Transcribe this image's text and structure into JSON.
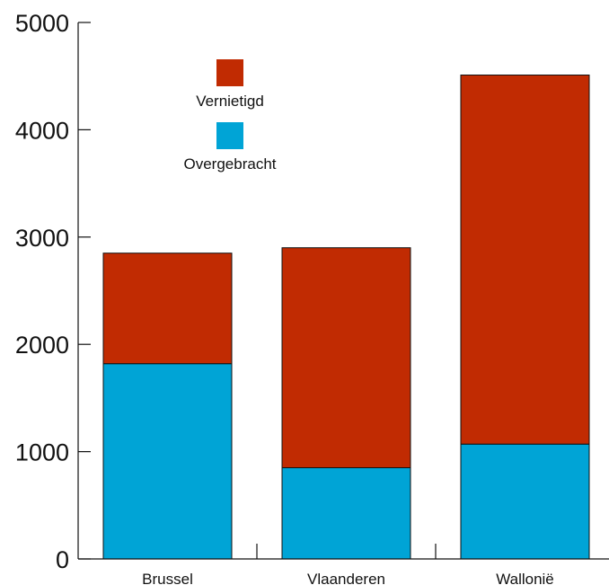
{
  "chart_data": {
    "type": "bar",
    "stacked": true,
    "categories": [
      "Brussel",
      "Vlaanderen",
      "Wallonië"
    ],
    "series": [
      {
        "name": "Overgebracht",
        "color": "#00a4d6",
        "values": [
          1820,
          850,
          1070
        ]
      },
      {
        "name": "Vernietigd",
        "color": "#c12b02",
        "values": [
          1030,
          2050,
          3440
        ]
      }
    ],
    "ylim": [
      0,
      5000
    ],
    "yticks": [
      0,
      1000,
      2000,
      3000,
      4000,
      5000
    ],
    "legend_position": "top-left",
    "grid": false,
    "title": "",
    "xlabel": "",
    "ylabel": ""
  }
}
